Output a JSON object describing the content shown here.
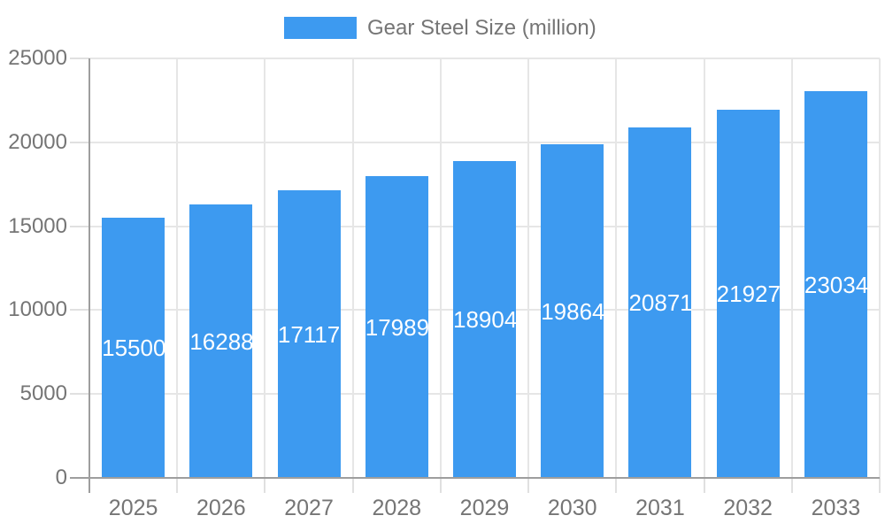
{
  "chart_data": {
    "type": "bar",
    "title": "",
    "categories": [
      "2025",
      "2026",
      "2027",
      "2028",
      "2029",
      "2030",
      "2031",
      "2032",
      "2033"
    ],
    "series": [
      {
        "name": "Gear Steel Size (million)",
        "values": [
          15500,
          16288,
          17117,
          17989,
          18904,
          19864,
          20871,
          21927,
          23034
        ]
      }
    ],
    "xlabel": "",
    "ylabel": "",
    "ylim": [
      0,
      25000
    ],
    "yticks": [
      0,
      5000,
      10000,
      15000,
      20000,
      25000
    ],
    "grid": true,
    "legend_position": "top",
    "data_labels": "inside-center"
  },
  "legend": {
    "label": "Gear Steel Size (million)"
  },
  "colors": {
    "bar": "#3d9af0",
    "bar_label": "#ffffff",
    "axis_text": "#757575",
    "gridline": "#e6e6e6",
    "tick": "#e0e0e0",
    "axis_line": "#9e9e9e",
    "background": "#ffffff"
  }
}
